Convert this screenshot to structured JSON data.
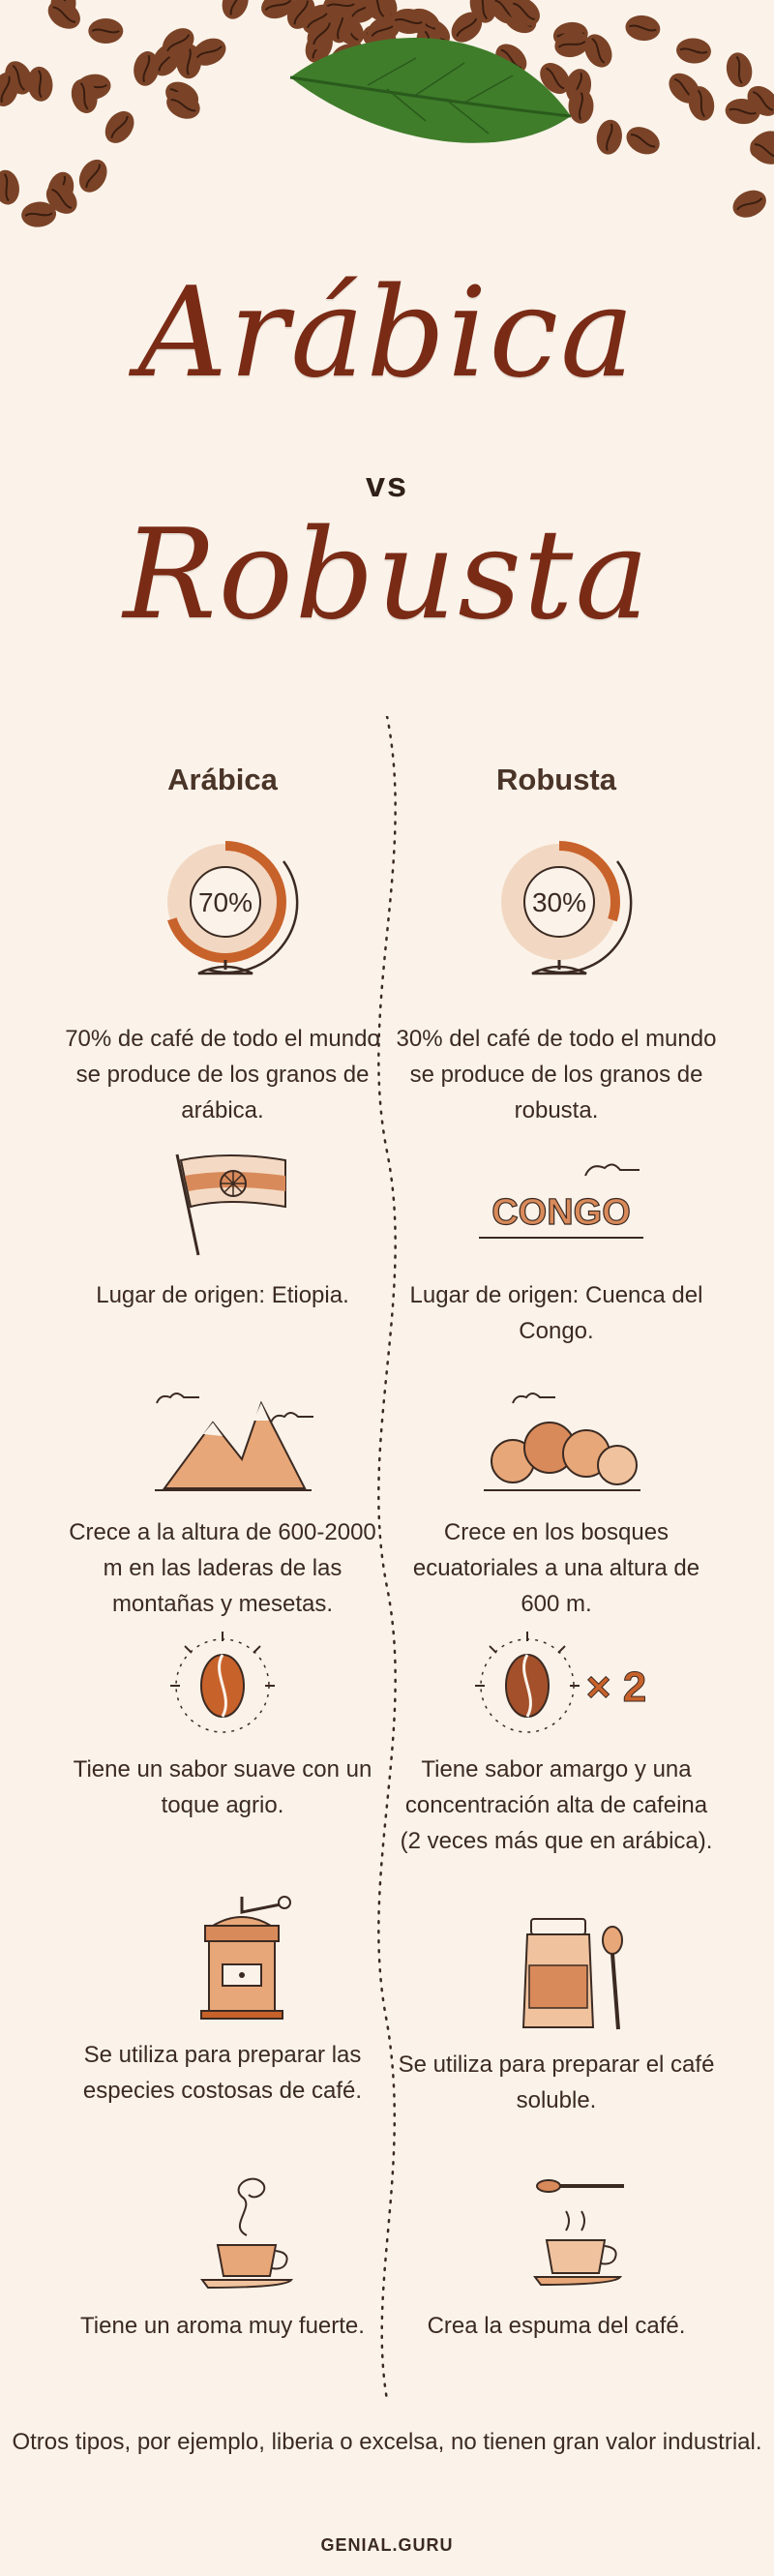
{
  "header": {
    "title_top": "Arábica",
    "title_vs": "vs",
    "title_bottom": "Robusta"
  },
  "columns": {
    "left": "Arábica",
    "right": "Robusta"
  },
  "rows": [
    {
      "left_icon": "globe-icon",
      "left_value": "70%",
      "left_text": "70% de café de todo el mundo se produce de los granos de arábica.",
      "right_icon": "globe-icon",
      "right_value": "30%",
      "right_text": "30% del café de todo el mundo se produce de los granos de robusta."
    },
    {
      "left_icon": "ethiopia-flag-icon",
      "left_text": "Lugar de origen: Etiopia.",
      "right_icon": "congo-sign-icon",
      "right_label": "CONGO",
      "right_text": "Lugar de origen: Cuenca del Congo."
    },
    {
      "left_icon": "mountains-icon",
      "left_text": "Crece a la altura de 600-2000 m en las laderas de las montañas y mesetas.",
      "right_icon": "forest-icon",
      "right_text": "Crece en los bosques ecuatoriales a una altura de 600 m."
    },
    {
      "left_icon": "coffee-bean-icon",
      "left_text": "Tiene un sabor suave con un toque agrio.",
      "right_icon": "coffee-bean-x2-icon",
      "right_label": "× 2",
      "right_text": "Tiene sabor amargo y una concentración alta de cafeina (2 veces más que en arábica)."
    },
    {
      "left_icon": "coffee-grinder-icon",
      "left_text": "Se utiliza para preparar las especies costosas de café.",
      "right_icon": "jar-spoon-icon",
      "right_text": "Se utiliza para preparar el café soluble."
    },
    {
      "left_icon": "aroma-cup-icon",
      "left_text": "Tiene un aroma muy fuerte.",
      "right_icon": "foam-cup-icon",
      "right_text": "Crea la espuma del café."
    }
  ],
  "footer": {
    "note": "Otros tipos, por ejemplo, liberia o excelsa, no tienen gran valor industrial.",
    "brand": "GENIAL.GURU"
  },
  "colors": {
    "background": "#fbf3ea",
    "title": "#7a2b16",
    "accent": "#c8622b",
    "text": "#3b2a22"
  }
}
